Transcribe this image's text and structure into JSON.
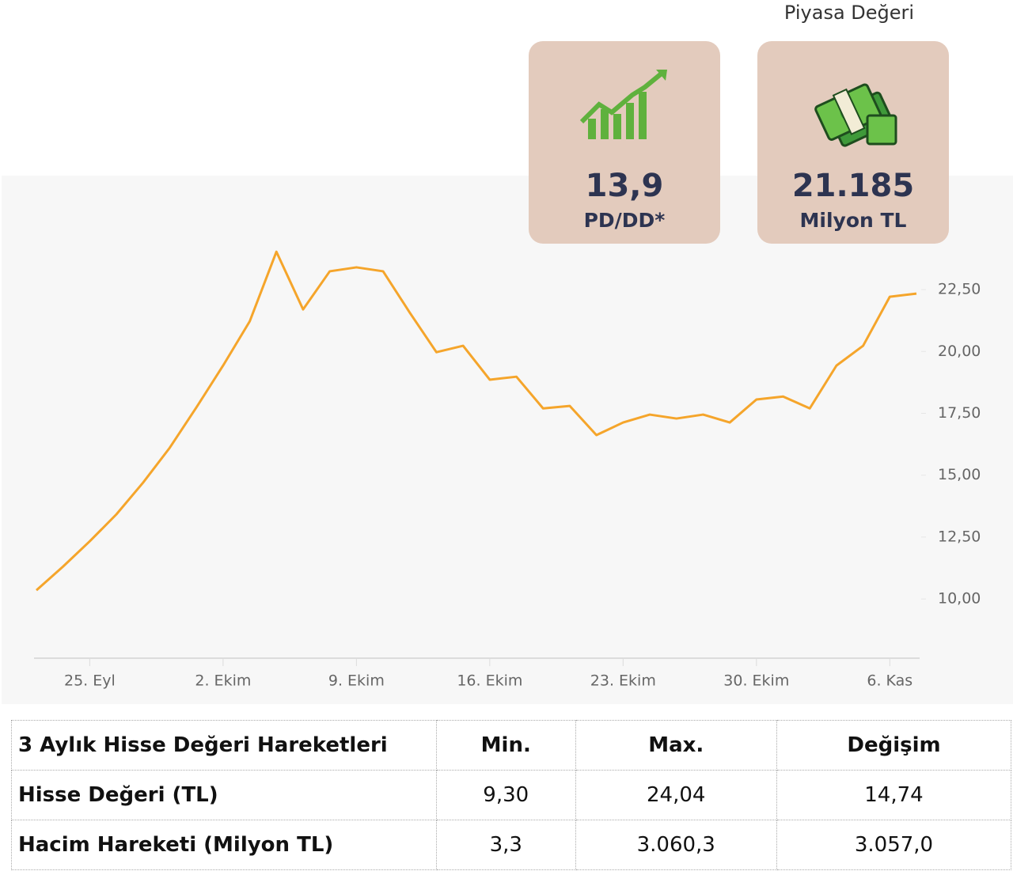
{
  "header": {
    "caption": "Piyasa Değeri"
  },
  "cards": [
    {
      "value": "13,9",
      "label": "PD/DD*"
    },
    {
      "value": "21.185",
      "label": "Milyon TL"
    }
  ],
  "chart_data": {
    "type": "line",
    "color": "#f5a52b",
    "grid": false,
    "categories": [
      null,
      null,
      "25. Eyl",
      null,
      null,
      null,
      null,
      "2. Ekim",
      null,
      null,
      null,
      null,
      "9. Ekim",
      null,
      null,
      null,
      null,
      "16. Ekim",
      null,
      null,
      null,
      null,
      "23. Ekim",
      null,
      null,
      null,
      null,
      "30. Ekim",
      null,
      null,
      null,
      null,
      "6. Kas",
      null
    ],
    "values": [
      10.35,
      11.31,
      12.33,
      13.42,
      14.7,
      16.11,
      17.74,
      19.43,
      21.22,
      24.03,
      21.7,
      23.24,
      23.4,
      23.24,
      21.57,
      19.97,
      20.23,
      18.86,
      18.98,
      17.7,
      17.8,
      16.62,
      17.13,
      17.45,
      17.29,
      17.45,
      17.13,
      18.06,
      18.18,
      17.7,
      19.43,
      20.23,
      22.21,
      22.34
    ],
    "ylim": [
      7.67,
      26.85
    ],
    "yticks": [
      {
        "value": 10,
        "label": "10,00"
      },
      {
        "value": 12.5,
        "label": "12,50"
      },
      {
        "value": 15,
        "label": "15,00"
      },
      {
        "value": 17.5,
        "label": "17,50"
      },
      {
        "value": 20,
        "label": "20,00"
      },
      {
        "value": 22.5,
        "label": "22,50"
      }
    ]
  },
  "table": {
    "header": [
      "3 Aylık Hisse Değeri Hareketleri",
      "Min.",
      "Max.",
      "Değişim"
    ],
    "rows": [
      [
        "Hisse Değeri (TL)",
        "9,30",
        "24,04",
        "14,74"
      ],
      [
        "Hacim Hareketi (Milyon TL)",
        "3,3",
        "3.060,3",
        "3.057,0"
      ]
    ]
  }
}
